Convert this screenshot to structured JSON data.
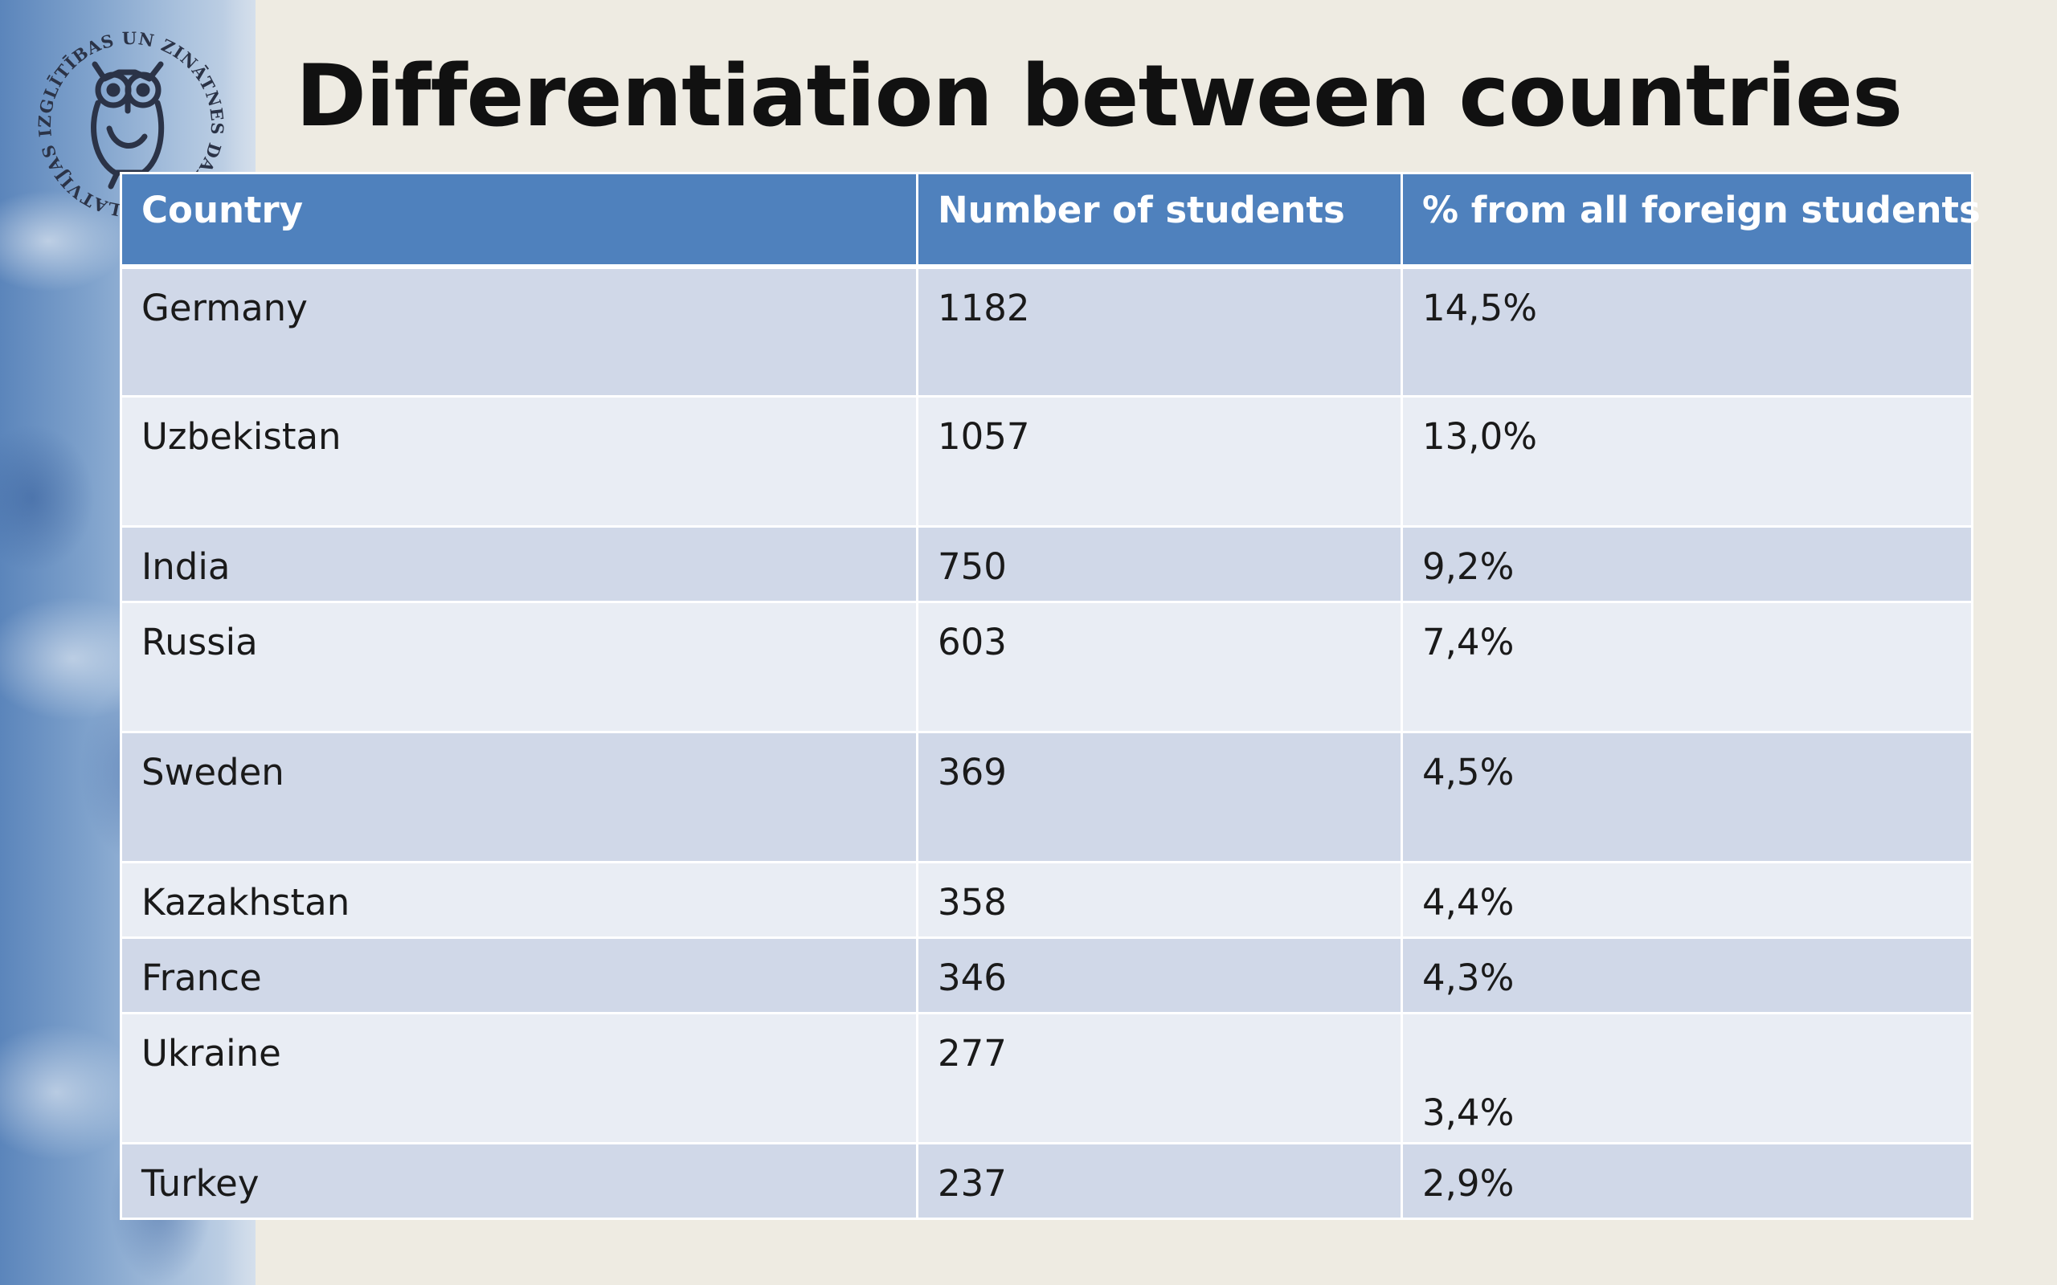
{
  "slide": {
    "title": "Differentiation between countries",
    "logo": {
      "name": "owl-seal-logo",
      "ring_text": "LATVIJAS IZGLĪTĪBAS UN ZINĀTNES DARBINIEKU ARODBIEDRĪBA"
    }
  },
  "table": {
    "headers": [
      "Country",
      "Number of students",
      "% from all foreign students"
    ],
    "rows": [
      {
        "country": "Germany",
        "students": "1182",
        "percent": "14,5%"
      },
      {
        "country": "Uzbekistan",
        "students": "1057",
        "percent": "13,0%"
      },
      {
        "country": "India",
        "students": "750",
        "percent": "9,2%"
      },
      {
        "country": "Russia",
        "students": "603",
        "percent": "7,4%"
      },
      {
        "country": "Sweden",
        "students": "369",
        "percent": "4,5%"
      },
      {
        "country": "Kazakhstan",
        "students": "358",
        "percent": "4,4%"
      },
      {
        "country": "France",
        "students": "346",
        "percent": "4,3%"
      },
      {
        "country": "Ukraine",
        "students": "277",
        "percent": "3,4%"
      },
      {
        "country": "Turkey",
        "students": "237",
        "percent": "2,9%"
      }
    ]
  },
  "colors": {
    "header_fill": "#4f81bd",
    "row_odd": "#d0d8e8",
    "row_even": "#e9edf4",
    "background": "#eeebe2",
    "strip_blue": "#5b85bb"
  }
}
